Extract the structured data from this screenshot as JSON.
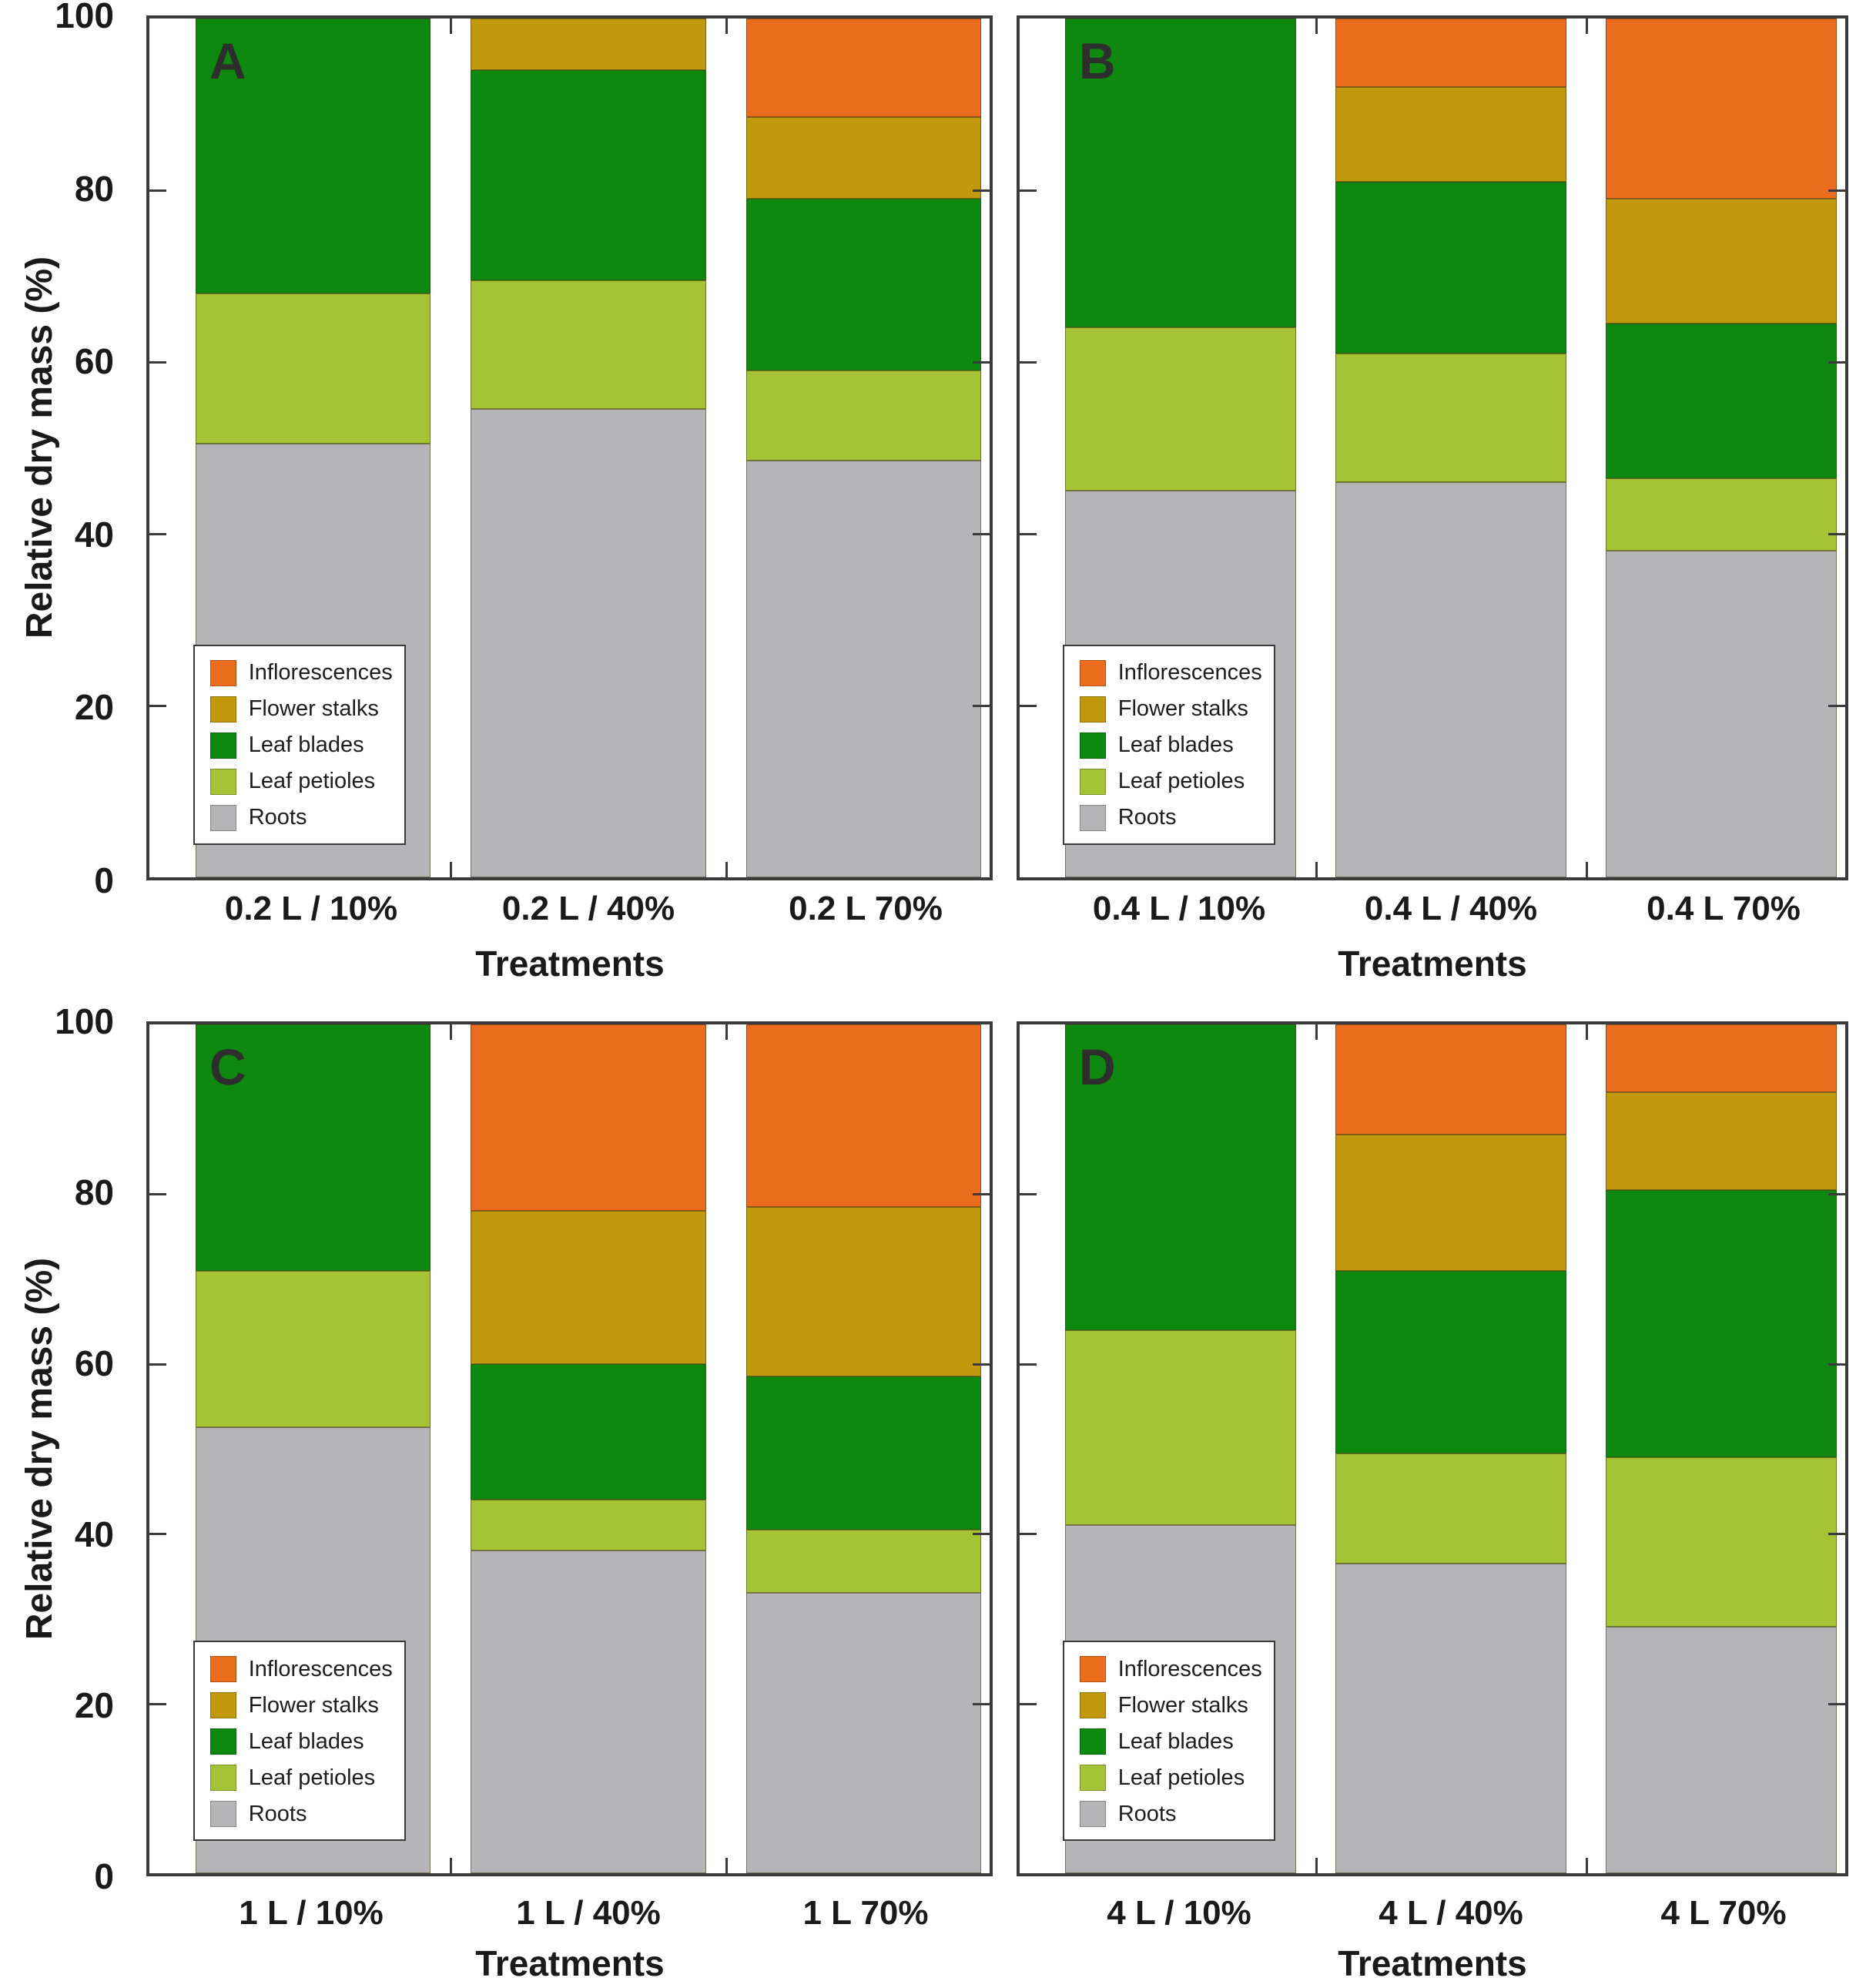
{
  "figure": {
    "ylabel": "Relative dry mass (%)",
    "xlabel": "Treatments",
    "panel_letters": [
      "A",
      "B",
      "C",
      "D"
    ],
    "ytick_labels": [
      "0",
      "20",
      "40",
      "60",
      "80",
      "100"
    ],
    "colors": {
      "Inflorescences": "#EC6C1D",
      "Flower stalks": "#C2990C",
      "Leaf blades": "#0E890F",
      "Leaf petioles": "#A5C334",
      "Roots": "#B5B5B7"
    },
    "legend_order": [
      "Inflorescences",
      "Flower stalks",
      "Leaf blades",
      "Leaf petioles",
      "Roots"
    ],
    "legend_position": "lower left inside plot"
  },
  "chart_data": [
    {
      "type": "bar",
      "stacked": true,
      "panel": "A",
      "ylabel": "Relative dry mass (%)",
      "xlabel": "Treatments",
      "ylim": [
        0,
        100
      ],
      "yticks": [
        0,
        20,
        40,
        60,
        80,
        100
      ],
      "grid": false,
      "categories": [
        "0.2 L / 10%",
        "0.2 L / 40%",
        "0.2 L 70%"
      ],
      "series": [
        {
          "name": "Roots",
          "values": [
            50.5,
            54.5,
            48.5
          ]
        },
        {
          "name": "Leaf petioles",
          "values": [
            17.5,
            15,
            10.5
          ]
        },
        {
          "name": "Leaf blades",
          "values": [
            32,
            24.5,
            20
          ]
        },
        {
          "name": "Flower stalks",
          "values": [
            0,
            6,
            9.5
          ]
        },
        {
          "name": "Inflorescences",
          "values": [
            0,
            0,
            11.5
          ]
        }
      ]
    },
    {
      "type": "bar",
      "stacked": true,
      "panel": "B",
      "ylabel": "Relative dry mass (%)",
      "xlabel": "Treatments",
      "ylim": [
        0,
        100
      ],
      "yticks": [
        0,
        20,
        40,
        60,
        80,
        100
      ],
      "grid": false,
      "categories": [
        "0.4 L / 10%",
        "0.4 L / 40%",
        "0.4 L 70%"
      ],
      "series": [
        {
          "name": "Roots",
          "values": [
            45,
            46,
            38
          ]
        },
        {
          "name": "Leaf petioles",
          "values": [
            19,
            15,
            8.5
          ]
        },
        {
          "name": "Leaf blades",
          "values": [
            36,
            20,
            18
          ]
        },
        {
          "name": "Flower stalks",
          "values": [
            0,
            11,
            14.5
          ]
        },
        {
          "name": "Inflorescences",
          "values": [
            0,
            8,
            21
          ]
        }
      ]
    },
    {
      "type": "bar",
      "stacked": true,
      "panel": "C",
      "ylabel": "Relative dry mass (%)",
      "xlabel": "Treatments",
      "ylim": [
        0,
        100
      ],
      "yticks": [
        0,
        20,
        40,
        60,
        80,
        100
      ],
      "grid": false,
      "categories": [
        "1 L / 10%",
        "1 L / 40%",
        "1 L 70%"
      ],
      "series": [
        {
          "name": "Roots",
          "values": [
            52.5,
            38,
            33
          ]
        },
        {
          "name": "Leaf petioles",
          "values": [
            18.5,
            6,
            7.5
          ]
        },
        {
          "name": "Leaf blades",
          "values": [
            29,
            16,
            18
          ]
        },
        {
          "name": "Flower stalks",
          "values": [
            0,
            18,
            20
          ]
        },
        {
          "name": "Inflorescences",
          "values": [
            0,
            22,
            21.5
          ]
        }
      ]
    },
    {
      "type": "bar",
      "stacked": true,
      "panel": "D",
      "ylabel": "Relative dry mass (%)",
      "xlabel": "Treatments",
      "ylim": [
        0,
        100
      ],
      "yticks": [
        0,
        20,
        40,
        60,
        80,
        100
      ],
      "grid": false,
      "categories": [
        "4 L / 10%",
        "4 L / 40%",
        "4 L 70%"
      ],
      "series": [
        {
          "name": "Roots",
          "values": [
            41,
            36.5,
            29
          ]
        },
        {
          "name": "Leaf petioles",
          "values": [
            23,
            13,
            20
          ]
        },
        {
          "name": "Leaf blades",
          "values": [
            36,
            21.5,
            31.5
          ]
        },
        {
          "name": "Flower stalks",
          "values": [
            0,
            16,
            11.5
          ]
        },
        {
          "name": "Inflorescences",
          "values": [
            0,
            13,
            8
          ]
        }
      ]
    }
  ]
}
